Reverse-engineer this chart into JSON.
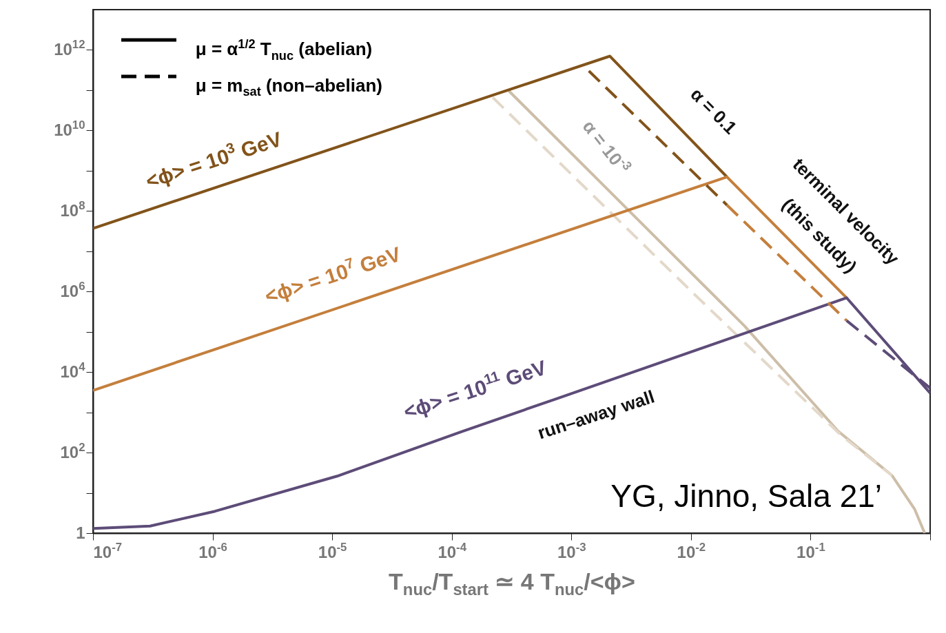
{
  "chart_data": {
    "type": "line",
    "xlabel": "T$_{nuc}$/T$_{start}$  ≃  4 T$_{nuc}$/<ϕ>",
    "log": "xy",
    "xlim": [
      1e-07,
      1
    ],
    "xticks": [
      {
        "value": 1e-07,
        "label": "10$^{-7}$"
      },
      {
        "value": 1e-06,
        "label": "10$^{-6}$"
      },
      {
        "value": 1e-05,
        "label": "10$^{-5}$"
      },
      {
        "value": 0.0001,
        "label": "10$^{-4}$"
      },
      {
        "value": 0.001,
        "label": "10$^{-3}$"
      },
      {
        "value": 0.01,
        "label": "10$^{-2}$"
      },
      {
        "value": 0.1,
        "label": "10$^{-1}$"
      },
      {
        "value": 1,
        "label": null
      }
    ],
    "ylim": [
      1,
      10000000000000.0
    ],
    "yticks": [
      1,
      {
        "value": 10,
        "label": null
      },
      {
        "value": 100.0,
        "label": "10$^{2}$"
      },
      {
        "value": 1000.0,
        "label": null
      },
      {
        "value": 10000.0,
        "label": "10$^{4}$"
      },
      {
        "value": 100000.0,
        "label": null
      },
      {
        "value": 1000000.0,
        "label": "10$^{6}$"
      },
      {
        "value": 10000000.0,
        "label": null
      },
      {
        "value": 100000000.0,
        "label": "10$^{8}$"
      },
      {
        "value": 1000000000.0,
        "label": null
      },
      {
        "value": 10000000000.0,
        "label": "10$^{10}$"
      },
      {
        "value": 100000000000.0,
        "label": null
      },
      {
        "value": 1000000000000.0,
        "label": "10$^{12}$"
      }
    ],
    "series": [
      {
        "color": "#cdbea8",
        "line_style": "solid",
        "x": [
          0.0003,
          0.028,
          0.17,
          0.48,
          0.74,
          0.9
        ],
        "values": [
          96000000000.0,
          140000.0,
          340,
          27,
          4,
          1
        ]
      },
      {
        "color": "#e3d8c9",
        "line_style": "dashed",
        "x": [
          0.00022,
          0.0107,
          0.18,
          0.48
        ],
        "values": [
          66000000000.0,
          850000.0,
          270,
          27
        ]
      },
      {
        "color": "#82531a",
        "line_style": "solid",
        "x": [
          1e-07,
          0.0021,
          0.02
        ],
        "values": [
          37000000.0,
          700000000000.0,
          700000000.0
        ]
      },
      {
        "color": "#c47f3c",
        "line_style": "solid",
        "x": [
          1e-07,
          0.02,
          0.2
        ],
        "values": [
          3500.0,
          700000000.0,
          700000.0
        ]
      },
      {
        "color": "#5d4c78",
        "line_style": "solid",
        "x": [
          1e-07,
          3e-07,
          1.05e-06,
          1.1e-05,
          0.00012,
          0.00076,
          0.2,
          1
        ],
        "values": [
          1.3,
          1.5,
          3.5,
          26,
          330,
          2200.0,
          700000.0,
          3000.0
        ]
      },
      {
        "color": "#82531a",
        "line_style": "dashed",
        "x": [
          0.0014,
          0.02
        ],
        "values": [
          300000000000.0,
          140000000.0
        ]
      },
      {
        "color": "#c47f3c",
        "line_style": "dashed",
        "x": [
          0.02,
          0.2
        ],
        "values": [
          140000000.0,
          190000.0
        ]
      },
      {
        "color": "#5d4c78",
        "line_style": "dashed",
        "x": [
          0.2,
          1
        ],
        "values": [
          190000.0,
          4000.0
        ]
      }
    ],
    "annotations": [
      "<ϕ> = 10$^{3}$ GeV",
      "<ϕ> = 10$^{7}$ GeV",
      "<ϕ> = 10$^{11}$ GeV",
      "α = 0.1",
      "α = 10$^{-3}$",
      "terminal velocity",
      "(this study)",
      "run–away wall",
      "YG, Jinno, Sala 21’",
      "μ = α$^{1/2}$ T$_{nuc}$ (abelian)",
      "μ = m$_{sat}$ (non–abelian)"
    ]
  }
}
